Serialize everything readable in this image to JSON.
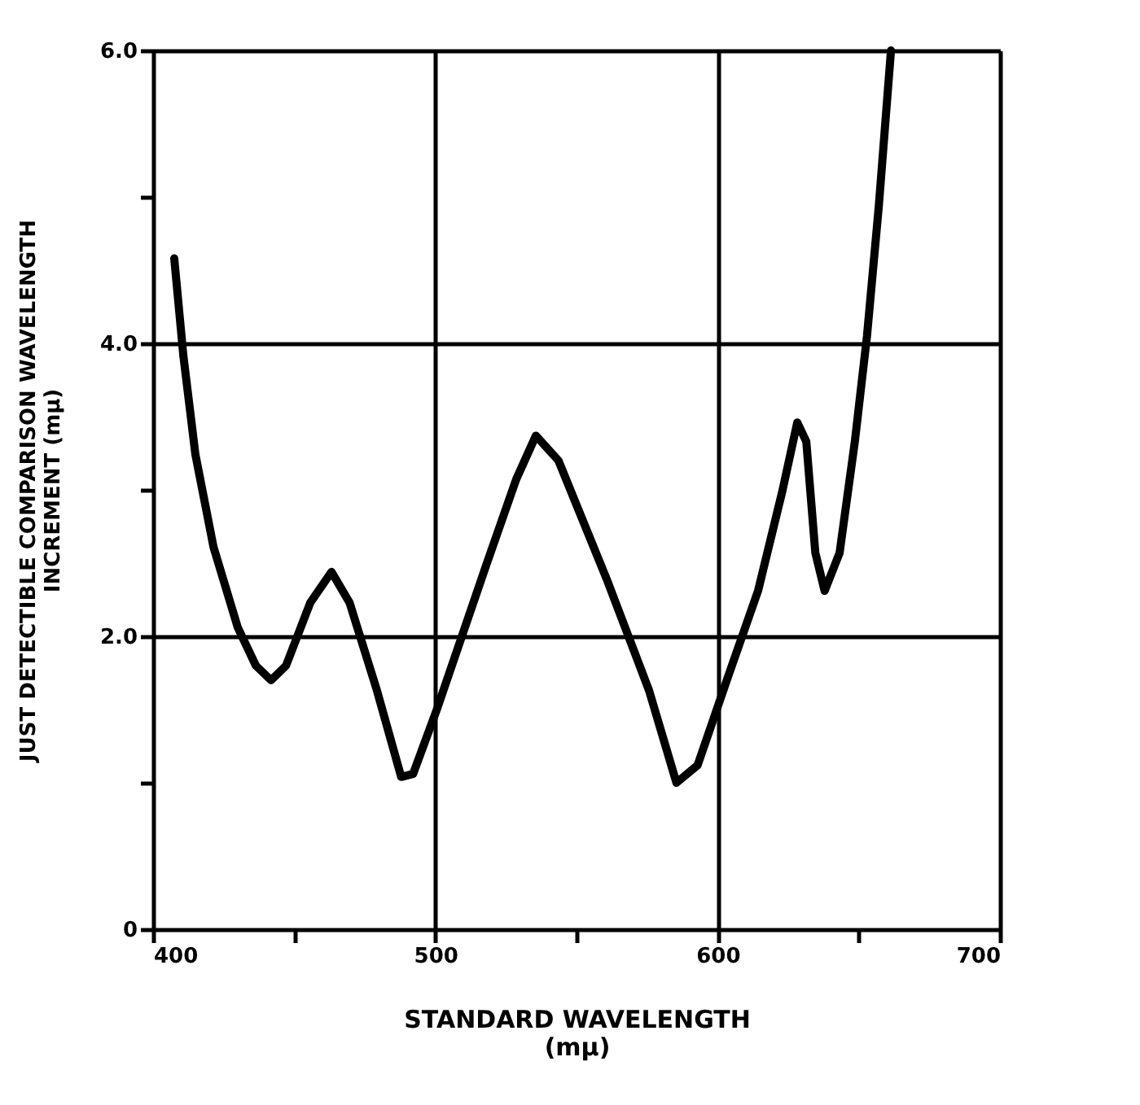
{
  "chart_data": {
    "type": "line",
    "xlabel": "STANDARD WAVELENGTH\n(mμ)",
    "ylabel": "JUST DETECTIBLE COMPARISON WAVELENGTH\nINCREMENT (mμ)",
    "xlim": [
      400,
      700
    ],
    "ylim": [
      0,
      6
    ],
    "xticks": [
      400,
      {
        "value": 450,
        "label": null
      },
      500,
      {
        "value": 550,
        "label": null
      },
      600,
      {
        "value": 650,
        "label": null
      },
      700
    ],
    "yticks": [
      {
        "value": 0,
        "label": "0"
      },
      {
        "value": 1,
        "label": null
      },
      {
        "value": 2,
        "label": "2.0"
      },
      {
        "value": 3,
        "label": null
      },
      {
        "value": 4,
        "label": "4.0"
      },
      {
        "value": 5,
        "label": null
      },
      {
        "value": 6,
        "label": "6.0"
      }
    ],
    "grid": true,
    "marker": "none",
    "line_style": "solid",
    "series": [
      {
        "color": "#000000",
        "x": [
          407.5,
          410.7,
          415,
          421.4,
          430,
          436.4,
          441.8,
          447.1,
          455.7,
          463.2,
          469.6,
          479.3,
          487.9,
          492.1,
          500.7,
          517.9,
          528.6,
          535.6,
          543.6,
          560.7,
          575.7,
          585.4,
          592.9,
          603.6,
          614.3,
          622.9,
          628.2,
          631.4,
          634.6,
          637.9,
          643.2,
          648.6,
          652.9,
          657.1,
          661.4
        ],
        "values": [
          4.58,
          3.92,
          3.24,
          2.61,
          2.06,
          1.8,
          1.7,
          1.8,
          2.23,
          2.44,
          2.23,
          1.63,
          1.04,
          1.06,
          1.51,
          2.48,
          3.07,
          3.37,
          3.2,
          2.39,
          1.63,
          1.0,
          1.12,
          1.72,
          2.31,
          2.99,
          3.46,
          3.33,
          2.57,
          2.31,
          2.57,
          3.33,
          4.05,
          4.94,
          6.0
        ]
      }
    ]
  }
}
